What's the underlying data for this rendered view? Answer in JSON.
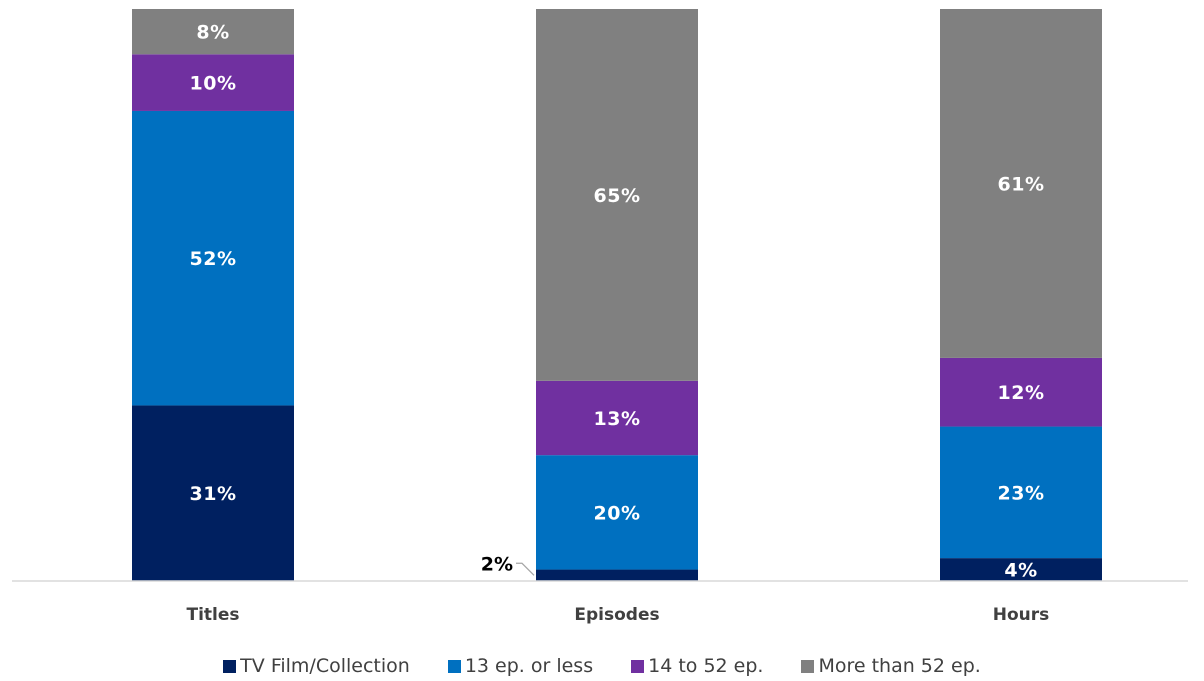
{
  "chart_data": {
    "type": "bar",
    "stacked": true,
    "normalized_percent": true,
    "categories": [
      "Titles",
      "Episodes",
      "Hours"
    ],
    "series": [
      {
        "name": "TV Film/Collection",
        "color": "#002060",
        "values": [
          31,
          2,
          4
        ],
        "labels": [
          "31%",
          "2%",
          "4%"
        ]
      },
      {
        "name": "13 ep. or less",
        "color": "#0070C0",
        "values": [
          52,
          20,
          23
        ],
        "labels": [
          "52%",
          "20%",
          "23%"
        ]
      },
      {
        "name": "14 to 52 ep.",
        "color": "#7030A0",
        "values": [
          10,
          13,
          12
        ],
        "labels": [
          "10%",
          "13%",
          "12%"
        ]
      },
      {
        "name": "More than 52 ep.",
        "color": "#808080",
        "values": [
          8,
          65,
          61
        ],
        "labels": [
          "8%",
          "65%",
          "61%"
        ]
      }
    ],
    "ylim": [
      0,
      100
    ],
    "grid": false,
    "legend_position": "bottom",
    "title": "",
    "xlabel": "",
    "ylabel": ""
  }
}
